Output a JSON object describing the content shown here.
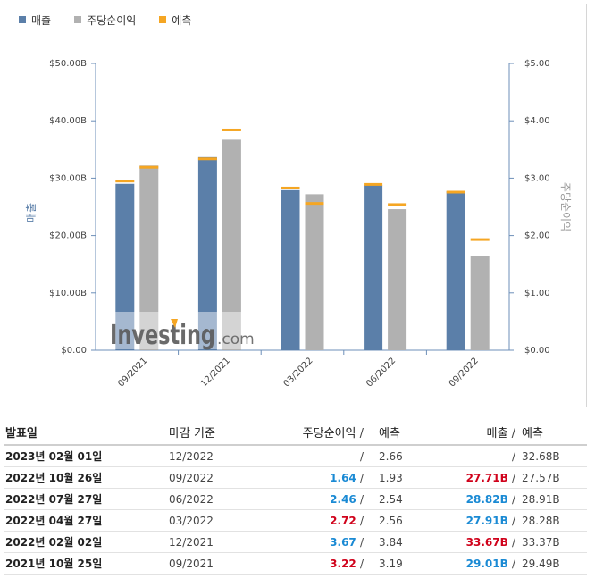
{
  "legend": {
    "revenue": "매출",
    "eps": "주당순이익",
    "forecast": "예측"
  },
  "colors": {
    "revenue": "#5b7fa9",
    "eps": "#b1b1b1",
    "forecast": "#f5a623",
    "positive": "#1a8ad4",
    "negative": "#d0021b"
  },
  "watermark": {
    "brand": "Investing",
    "suffix": ".com"
  },
  "chart_data": {
    "type": "bar",
    "categories": [
      "09/2021",
      "12/2021",
      "03/2022",
      "06/2022",
      "09/2022"
    ],
    "series": [
      {
        "name": "매출",
        "axis": "left",
        "values": [
          29.01,
          33.67,
          27.91,
          28.82,
          27.71
        ],
        "forecast": [
          29.49,
          33.37,
          28.28,
          28.91,
          27.57
        ]
      },
      {
        "name": "주당순이익",
        "axis": "right",
        "values": [
          3.22,
          3.67,
          2.72,
          2.46,
          1.64
        ],
        "forecast": [
          3.19,
          3.84,
          2.56,
          2.54,
          1.93
        ]
      }
    ],
    "ylabel": "매출",
    "y2label": "주당순이익",
    "ylim": [
      0,
      50
    ],
    "y2lim": [
      0,
      5
    ],
    "yticks": [
      "$0.00",
      "$10.00B",
      "$20.00B",
      "$30.00B",
      "$40.00B",
      "$50.00B"
    ],
    "y2ticks": [
      "$0.00",
      "$1.00",
      "$2.00",
      "$3.00",
      "$4.00",
      "$5.00"
    ],
    "grid": false,
    "legend_position": "top-left"
  },
  "table": {
    "headers": {
      "date": "발표일",
      "period": "마감 기준",
      "eps": "주당순이익",
      "slash": "/",
      "eps_forecast": "예측",
      "revenue": "매출",
      "revenue_forecast": "예측"
    },
    "rows": [
      {
        "date": "2023년 02월 01일",
        "period": "12/2022",
        "eps": "--",
        "eps_forecast": "2.66",
        "revenue": "--",
        "revenue_forecast": "32.68B",
        "eps_class": "neu",
        "rev_class": "neu"
      },
      {
        "date": "2022년 10월 26일",
        "period": "09/2022",
        "eps": "1.64",
        "eps_forecast": "1.93",
        "revenue": "27.71B",
        "revenue_forecast": "27.57B",
        "eps_class": "pos",
        "rev_class": "neg"
      },
      {
        "date": "2022년 07월 27일",
        "period": "06/2022",
        "eps": "2.46",
        "eps_forecast": "2.54",
        "revenue": "28.82B",
        "revenue_forecast": "28.91B",
        "eps_class": "pos",
        "rev_class": "pos"
      },
      {
        "date": "2022년 04월 27일",
        "period": "03/2022",
        "eps": "2.72",
        "eps_forecast": "2.56",
        "revenue": "27.91B",
        "revenue_forecast": "28.28B",
        "eps_class": "neg",
        "rev_class": "pos"
      },
      {
        "date": "2022년 02월 02일",
        "period": "12/2021",
        "eps": "3.67",
        "eps_forecast": "3.84",
        "revenue": "33.67B",
        "revenue_forecast": "33.37B",
        "eps_class": "pos",
        "rev_class": "neg"
      },
      {
        "date": "2021년 10월 25일",
        "period": "09/2021",
        "eps": "3.22",
        "eps_forecast": "3.19",
        "revenue": "29.01B",
        "revenue_forecast": "29.49B",
        "eps_class": "neg",
        "rev_class": "pos"
      }
    ]
  }
}
